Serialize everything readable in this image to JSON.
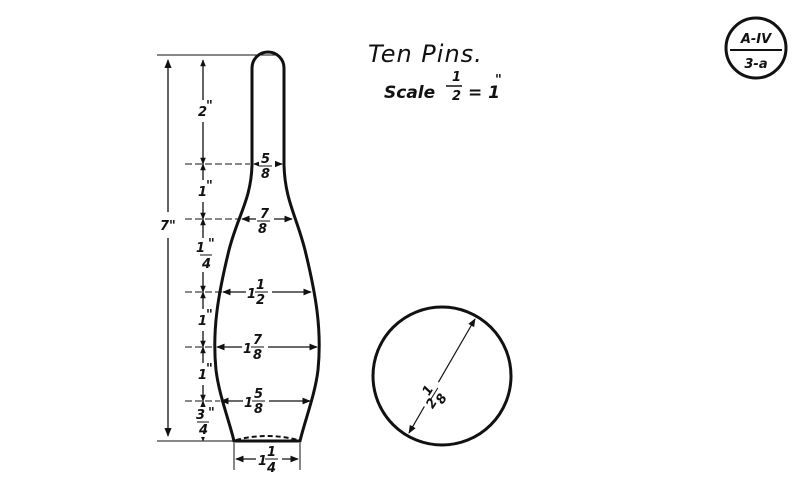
{
  "title": "Ten Pins.",
  "scale": {
    "prefix": "Scale",
    "num": "1",
    "den": "2",
    "rest": "= 1"
  },
  "badge": {
    "top": "A-IV",
    "bottom": "3-a"
  },
  "overall_height": "7\"",
  "segments": [
    {
      "num": "2",
      "den": "",
      "unit": "\""
    },
    {
      "num": "1",
      "den": "",
      "unit": "\""
    },
    {
      "num": "1",
      "den": "4",
      "unit": "\""
    },
    {
      "num": "1",
      "den": "",
      "unit": "\""
    },
    {
      "num": "1",
      "den": "",
      "unit": "\""
    },
    {
      "num": "3",
      "den": "4",
      "unit": "\""
    }
  ],
  "diameters": [
    {
      "whole": "",
      "num": "5",
      "den": "8"
    },
    {
      "whole": "",
      "num": "7",
      "den": "8"
    },
    {
      "whole": "1",
      "num": "1",
      "den": "2"
    },
    {
      "whole": "1",
      "num": "7",
      "den": "8"
    },
    {
      "whole": "1",
      "num": "5",
      "den": "8"
    }
  ],
  "base_width": {
    "whole": "1",
    "num": "1",
    "den": "4"
  },
  "circle_diameter": {
    "whole": "2",
    "num": "1",
    "den": "8"
  }
}
